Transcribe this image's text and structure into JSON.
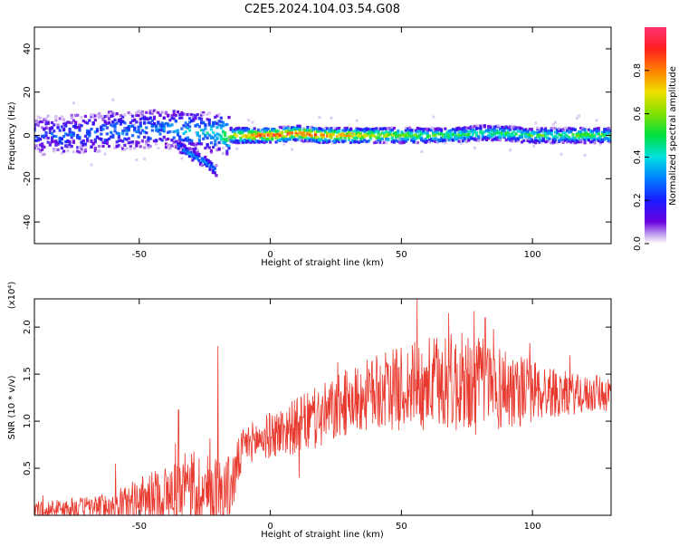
{
  "chart_data": [
    {
      "type": "heatmap",
      "title": "C2E5.2024.104.03.54.G08",
      "xlabel": "Height of straight line (km)",
      "ylabel": "Frequency (Hz)",
      "xlim": [
        -90,
        130
      ],
      "ylim": [
        -50,
        50
      ],
      "x_ticks": [
        -50,
        0,
        50,
        100
      ],
      "y_ticks": [
        -40,
        -20,
        0,
        20,
        40
      ],
      "ridge": {
        "x": [
          -90,
          -80,
          -70,
          -60,
          -50,
          -40,
          -30,
          -20,
          -15,
          -10,
          0,
          10,
          20,
          30,
          40,
          50,
          60,
          70,
          80,
          90,
          100,
          110,
          120,
          130
        ],
        "freq": [
          0,
          0,
          1,
          2,
          3,
          3,
          2,
          1,
          0,
          0,
          0,
          1,
          0,
          0,
          0,
          0,
          0,
          0,
          1,
          1,
          0,
          0,
          0,
          0
        ],
        "amplitude": [
          0.2,
          0.25,
          0.25,
          0.3,
          0.3,
          0.3,
          0.4,
          0.4,
          0.7,
          0.8,
          0.9,
          0.9,
          0.85,
          0.75,
          0.7,
          0.6,
          0.55,
          0.55,
          0.5,
          0.5,
          0.55,
          0.5,
          0.6,
          0.55
        ]
      },
      "side_branch": {
        "x": [
          -35,
          -30,
          -25,
          -20
        ],
        "freq": [
          -5,
          -9,
          -12,
          -17
        ],
        "amplitude": [
          0.3,
          0.35,
          0.35,
          0.3
        ]
      },
      "colorbar": {
        "label": "Normalized spectral amplitude",
        "range": [
          0.0,
          1.0
        ],
        "ticks": [
          "0.0",
          "0.2",
          "0.4",
          "0.6",
          "0.8"
        ],
        "tick_values": [
          0.0,
          0.2,
          0.4,
          0.6,
          0.8
        ]
      }
    },
    {
      "type": "line",
      "xlabel": "Height of straight line (km)",
      "ylabel": "SNR (10 * v/v)",
      "exponent_label": "(x10⁴)",
      "xlim": [
        -90,
        130
      ],
      "ylim": [
        0,
        2.3
      ],
      "x_ticks": [
        -50,
        0,
        50,
        100
      ],
      "y_ticks": [
        "0.5",
        "1.0",
        "1.5",
        "2.0"
      ],
      "y_tick_values": [
        0.5,
        1.0,
        1.5,
        2.0
      ],
      "series": [
        {
          "color": "#e8392e",
          "envelope_x": [
            -90,
            -80,
            -70,
            -60,
            -50,
            -40,
            -30,
            -20,
            -15,
            -10,
            0,
            10,
            20,
            30,
            40,
            50,
            60,
            70,
            80,
            90,
            100,
            110,
            120,
            130
          ],
          "baseline": [
            0.05,
            0.07,
            0.08,
            0.1,
            0.15,
            0.2,
            0.25,
            0.25,
            0.3,
            0.75,
            0.85,
            0.95,
            1.05,
            1.2,
            1.3,
            1.35,
            1.4,
            1.4,
            1.38,
            1.35,
            1.32,
            1.3,
            1.28,
            1.3
          ],
          "spread": [
            0.1,
            0.1,
            0.12,
            0.15,
            0.25,
            0.35,
            0.45,
            0.4,
            0.35,
            0.2,
            0.25,
            0.3,
            0.35,
            0.35,
            0.4,
            0.45,
            0.5,
            0.55,
            0.55,
            0.45,
            0.35,
            0.25,
            0.2,
            0.2
          ],
          "spikes": [
            {
              "x": -20,
              "y": 1.8
            },
            {
              "x": -35,
              "y": 1.12
            },
            {
              "x": 56,
              "y": 2.3
            },
            {
              "x": 68,
              "y": 2.15
            },
            {
              "x": 82,
              "y": 2.1
            },
            {
              "x": 11,
              "y": 0.4
            },
            {
              "x": -59,
              "y": 0.55
            }
          ]
        }
      ]
    }
  ]
}
